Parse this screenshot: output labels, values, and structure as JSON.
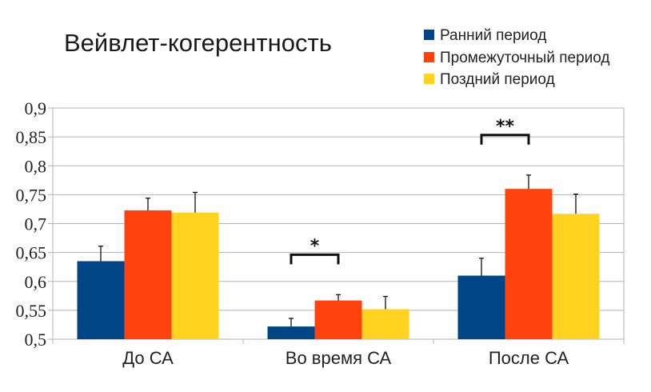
{
  "chart_data": {
    "type": "bar",
    "title": "Вейвлет-когерентность",
    "categories": [
      "До СА",
      "Во время СА",
      "После СА"
    ],
    "series": [
      {
        "name": "Ранний период",
        "color": "#004586",
        "values": [
          0.635,
          0.522,
          0.61
        ],
        "errors": [
          0.026,
          0.014,
          0.03
        ]
      },
      {
        "name": "Промежуточный период",
        "color": "#ff420e",
        "values": [
          0.723,
          0.567,
          0.76
        ],
        "errors": [
          0.021,
          0.01,
          0.024
        ]
      },
      {
        "name": "Поздний период",
        "color": "#ffd320",
        "values": [
          0.719,
          0.552,
          0.717
        ],
        "errors": [
          0.035,
          0.022,
          0.034
        ]
      }
    ],
    "ylim": [
      0.5,
      0.9
    ],
    "yticks": [
      0.5,
      0.55,
      0.6,
      0.65,
      0.7,
      0.75,
      0.8,
      0.85,
      0.9
    ],
    "ytick_labels": [
      "0,5",
      "0,55",
      "0,6",
      "0,65",
      "0,7",
      "0,75",
      "0,8",
      "0,85",
      "0,9"
    ],
    "grid": true,
    "legend_position": "top-right",
    "significance": [
      {
        "category_index": 1,
        "label": "*"
      },
      {
        "category_index": 2,
        "label": "**"
      }
    ]
  }
}
